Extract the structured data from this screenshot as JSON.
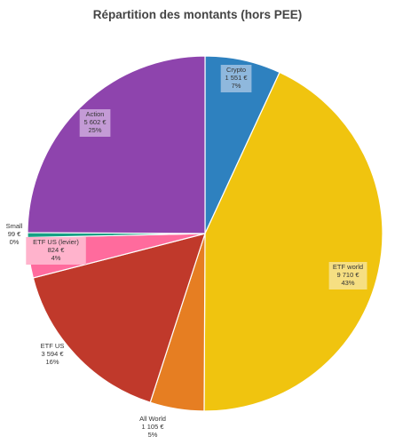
{
  "chart_data": {
    "type": "pie",
    "title": "Répartition des montants (hors PEE)",
    "start_direction": "top",
    "order": "clockwise",
    "slices": [
      {
        "name": "Crypto",
        "value_label": "1 551 €",
        "percent_label": "7%",
        "value": 1551,
        "color": "#2e81bf",
        "label_box_color": "#8fb8dd"
      },
      {
        "name": "ETF world",
        "value_label": "9 710 €",
        "percent_label": "43%",
        "value": 9710,
        "color": "#f0c40f",
        "label_box_color": "#f6df82"
      },
      {
        "name": "All World",
        "value_label": "1 105 €",
        "percent_label": "5%",
        "value": 1105,
        "color": "#e67e22",
        "label_box_color": ""
      },
      {
        "name": "ETF US",
        "value_label": "3 594 €",
        "percent_label": "16%",
        "value": 3594,
        "color": "#c0392b",
        "label_box_color": ""
      },
      {
        "name": "ETF US (levier)",
        "value_label": "824 €",
        "percent_label": "4%",
        "value": 824,
        "color": "#ff6b9d",
        "label_box_color": "#ffb3cc"
      },
      {
        "name": "Small",
        "value_label": "99 €",
        "percent_label": "0%",
        "value": 99,
        "color": "#16a085",
        "label_box_color": ""
      },
      {
        "name": "Action",
        "value_label": "5 602 €",
        "percent_label": "25%",
        "value": 5602,
        "color": "#8e44ad",
        "label_box_color": "#c49bd6"
      }
    ]
  }
}
